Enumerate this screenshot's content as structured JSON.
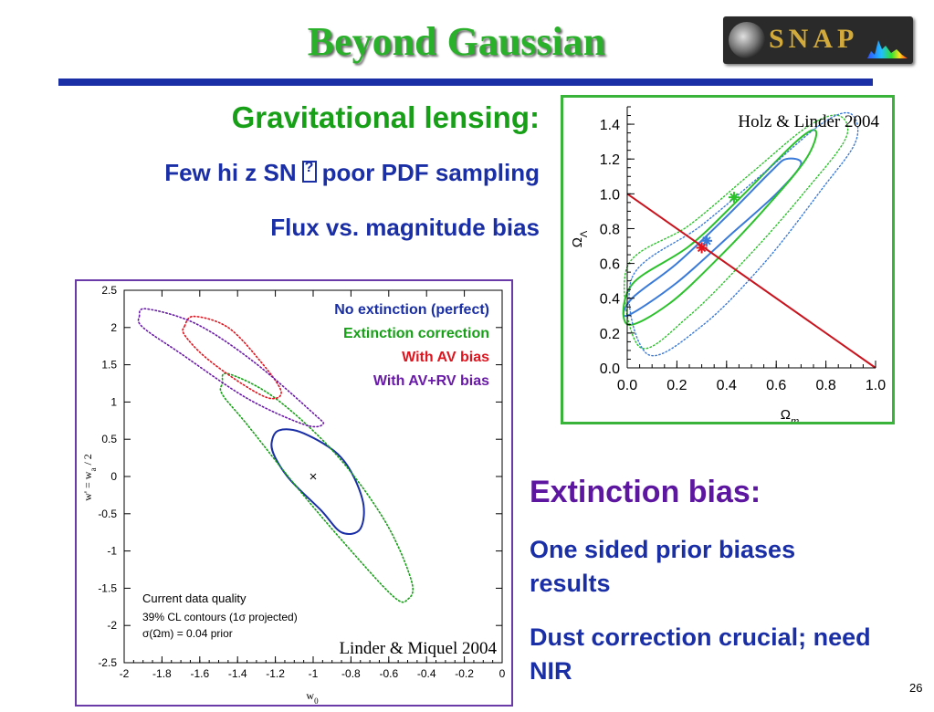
{
  "title": "Beyond Gaussian",
  "logo": {
    "text": "SNAP"
  },
  "lensing": {
    "heading": "Gravitational lensing:",
    "line1_pre": "Few hi z SN",
    "line1_post": "poor PDF sampling",
    "line2": "Flux vs. magnitude bias"
  },
  "extinction": {
    "heading": "Extinction bias:",
    "line1": "One sided prior biases results",
    "line2": "Dust correction crucial; need NIR"
  },
  "slide_number": "26",
  "chart_data": [
    {
      "type": "contour",
      "xlabel": "w0",
      "ylabel": "w' = wa / 2",
      "xlim": [
        -2,
        0
      ],
      "ylim": [
        -2.5,
        2.5
      ],
      "x_ticks": [
        "-2",
        "-1.8",
        "-1.6",
        "-1.4",
        "-1.2",
        "-1",
        "-0.8",
        "-0.6",
        "-0.4",
        "-0.2",
        "0"
      ],
      "y_ticks": [
        "2.5",
        "2",
        "1.5",
        "1",
        "0.5",
        "0",
        "-0.5",
        "-1",
        "-1.5",
        "-2",
        "-2.5"
      ],
      "legend": [
        {
          "label": "No extinction (perfect)",
          "color": "#1a2ea6"
        },
        {
          "label": "Extinction correction",
          "color": "#17a017"
        },
        {
          "label": "With AV bias",
          "color": "#e0141e"
        },
        {
          "label": "With AV+RV bias",
          "color": "#6a1aa8"
        }
      ],
      "notes": [
        "Current data quality",
        "39% CL contours (1σ projected)",
        "σ(Ωm) = 0.04 prior"
      ],
      "credit": "Linder & Miquel 2004",
      "fiducial_marker": {
        "x": -1,
        "y": 0
      },
      "series": [
        {
          "name": "No extinction (perfect)",
          "color": "#1a2ea6",
          "style": "solid",
          "center": [
            -0.95,
            0.0
          ],
          "points": [
            [
              -1.22,
              0.45
            ],
            [
              -1.18,
              0.62
            ],
            [
              -1.05,
              0.58
            ],
            [
              -0.85,
              0.25
            ],
            [
              -0.74,
              -0.3
            ],
            [
              -0.75,
              -0.7
            ],
            [
              -0.85,
              -0.75
            ],
            [
              -0.96,
              -0.45
            ],
            [
              -1.12,
              -0.05
            ],
            [
              -1.2,
              0.25
            ]
          ]
        },
        {
          "name": "Extinction correction",
          "color": "#17a017",
          "style": "dotted",
          "points": [
            [
              -1.48,
              1.25
            ],
            [
              -1.45,
              1.38
            ],
            [
              -1.2,
              1.05
            ],
            [
              -0.88,
              0.3
            ],
            [
              -0.62,
              -0.6
            ],
            [
              -0.48,
              -1.4
            ],
            [
              -0.5,
              -1.65
            ],
            [
              -0.58,
              -1.6
            ],
            [
              -0.85,
              -0.85
            ],
            [
              -1.1,
              -0.1
            ],
            [
              -1.35,
              0.7
            ],
            [
              -1.48,
              1.1
            ]
          ]
        },
        {
          "name": "With AV bias",
          "color": "#e0141e",
          "style": "dotted",
          "points": [
            [
              -1.68,
              2.02
            ],
            [
              -1.63,
              2.15
            ],
            [
              -1.45,
              2.0
            ],
            [
              -1.28,
              1.55
            ],
            [
              -1.17,
              1.15
            ],
            [
              -1.23,
              1.05
            ],
            [
              -1.38,
              1.25
            ],
            [
              -1.57,
              1.6
            ],
            [
              -1.68,
              1.9
            ]
          ]
        },
        {
          "name": "With AV+RV bias",
          "color": "#6a1aa8",
          "style": "dotted",
          "points": [
            [
              -1.92,
              2.15
            ],
            [
              -1.88,
              2.25
            ],
            [
              -1.62,
              2.05
            ],
            [
              -1.32,
              1.55
            ],
            [
              -1.0,
              0.85
            ],
            [
              -0.95,
              0.7
            ],
            [
              -1.05,
              0.7
            ],
            [
              -1.35,
              1.05
            ],
            [
              -1.7,
              1.65
            ],
            [
              -1.9,
              2.0
            ]
          ]
        }
      ]
    },
    {
      "type": "contour",
      "xlabel": "Ωm",
      "ylabel": "ΩΛ",
      "xlim": [
        0,
        1
      ],
      "ylim": [
        0,
        1.5
      ],
      "x_ticks": [
        "0.0",
        "0.2",
        "0.4",
        "0.6",
        "0.8",
        "1.0"
      ],
      "y_ticks": [
        "0.0",
        "0.2",
        "0.4",
        "0.6",
        "0.8",
        "1.0",
        "1.2",
        "1.4"
      ],
      "credit": "Holz & Linder 2004",
      "flat_line": {
        "color": "#c8141e",
        "from": [
          0,
          1.0
        ],
        "to": [
          1.0,
          0.0
        ]
      },
      "markers": [
        {
          "x": 0.43,
          "y": 0.98,
          "color": "#2bc12b"
        },
        {
          "x": 0.32,
          "y": 0.73,
          "color": "#3a7ad8"
        },
        {
          "x": 0.3,
          "y": 0.69,
          "color": "#e0141e"
        }
      ],
      "series": [
        {
          "name": "inner",
          "color": "#3a7ad8",
          "style": "solid",
          "points": [
            [
              0.02,
              0.4
            ],
            [
              0.2,
              0.6
            ],
            [
              0.4,
              0.87
            ],
            [
              0.58,
              1.13
            ],
            [
              0.64,
              1.2
            ],
            [
              0.7,
              1.17
            ],
            [
              0.6,
              1.0
            ],
            [
              0.42,
              0.77
            ],
            [
              0.2,
              0.49
            ],
            [
              0.0,
              0.3
            ]
          ]
        },
        {
          "name": "middle",
          "color": "#2bc12b",
          "style": "solid",
          "points": [
            [
              0.02,
              0.48
            ],
            [
              0.25,
              0.7
            ],
            [
              0.45,
              0.97
            ],
            [
              0.68,
              1.3
            ],
            [
              0.76,
              1.36
            ],
            [
              0.72,
              1.2
            ],
            [
              0.57,
              0.94
            ],
            [
              0.38,
              0.65
            ],
            [
              0.17,
              0.37
            ],
            [
              0.0,
              0.25
            ]
          ]
        },
        {
          "name": "outer-green",
          "color": "#2bc12b",
          "style": "dotted",
          "points": [
            [
              0.0,
              0.58
            ],
            [
              0.25,
              0.82
            ],
            [
              0.5,
              1.12
            ],
            [
              0.72,
              1.38
            ],
            [
              0.85,
              1.45
            ],
            [
              0.88,
              1.32
            ],
            [
              0.72,
              1.02
            ],
            [
              0.5,
              0.66
            ],
            [
              0.25,
              0.3
            ],
            [
              0.05,
              0.12
            ]
          ]
        },
        {
          "name": "outer-blue",
          "color": "#3a7ad8",
          "style": "dotted",
          "points": [
            [
              0.02,
              0.52
            ],
            [
              0.3,
              0.82
            ],
            [
              0.55,
              1.12
            ],
            [
              0.78,
              1.4
            ],
            [
              0.9,
              1.46
            ],
            [
              0.92,
              1.3
            ],
            [
              0.78,
              1.02
            ],
            [
              0.55,
              0.6
            ],
            [
              0.3,
              0.24
            ],
            [
              0.08,
              0.08
            ]
          ]
        }
      ]
    }
  ]
}
